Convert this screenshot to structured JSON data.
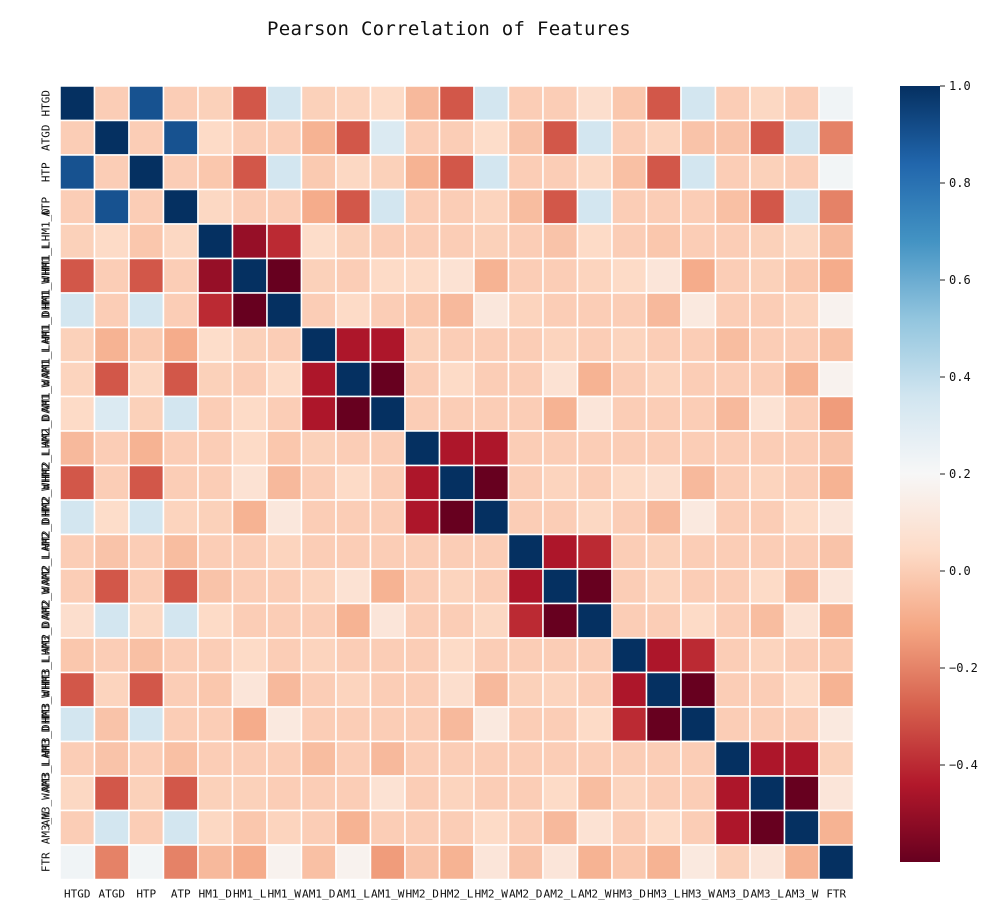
{
  "chart_data": {
    "type": "heatmap",
    "title": "Pearson Correlation of Features",
    "labels": [
      "HTGD",
      "ATGD",
      "HTP",
      "ATP",
      "HM1_D",
      "HM1_L",
      "HM1_W",
      "AM1_D",
      "AM1_L",
      "AM1_W",
      "HM2_D",
      "HM2_L",
      "HM2_W",
      "AM2_D",
      "AM2_L",
      "AM2_W",
      "HM3_D",
      "HM3_L",
      "HM3_W",
      "AM3_D",
      "AM3_L",
      "AM3_W",
      "FTR"
    ],
    "row_tick_labels": [
      "HTGD",
      "ATGD",
      "HTP",
      "ATP",
      "HM1_LHM1_D",
      "HM1_WHM1_L",
      "HM1_DHM1_W",
      "AM1_LAM1_D",
      "AM1_WAM1_L",
      "AM1_DAM1_W",
      "HM2_LHM2_D",
      "HM2_WHM2_L",
      "HM2_DHM2_W",
      "AM2_LAM2_D",
      "AM2_WAM2_L",
      "AM2_DAM2_W",
      "HM3_LHM3_D",
      "HM3_WHM3_L",
      "HM3_DHM3_W",
      "AM3_LAM3_D",
      "AM3_WAM3_L",
      "AM3_W",
      "FTR"
    ],
    "col_tick_labels": [
      "HTGD",
      "ATGD",
      "HTP",
      "ATP",
      "HM1_D",
      "HM1_L",
      "HM1_W",
      "AM1_D",
      "AM1_L",
      "AM1_W",
      "HM2_D",
      "HM2_L",
      "HM2_W",
      "AM2_D",
      "AM2_L",
      "AM2_W",
      "HM3_D",
      "HM3_L",
      "HM3_W",
      "AM3_D",
      "AM3_L",
      "AM3_W",
      "FTR"
    ],
    "values": [
      [
        1.0,
        0.0,
        0.9,
        0.0,
        0.01,
        -0.3,
        0.35,
        0.01,
        0.02,
        0.04,
        -0.06,
        -0.3,
        0.35,
        0.0,
        0.0,
        0.06,
        -0.02,
        -0.3,
        0.35,
        0.0,
        0.03,
        0.0,
        0.23
      ],
      [
        0.0,
        1.0,
        0.0,
        0.9,
        0.04,
        0.0,
        0.0,
        -0.08,
        -0.3,
        0.32,
        0.0,
        0.0,
        0.05,
        -0.03,
        -0.3,
        0.35,
        0.0,
        0.02,
        -0.03,
        -0.03,
        -0.3,
        0.35,
        -0.2
      ],
      [
        0.9,
        0.0,
        1.0,
        0.0,
        -0.02,
        -0.3,
        0.35,
        -0.01,
        0.03,
        0.01,
        -0.08,
        -0.3,
        0.35,
        0.0,
        0.0,
        0.03,
        -0.04,
        -0.3,
        0.35,
        0.0,
        0.01,
        0.0,
        0.22
      ],
      [
        0.0,
        0.9,
        0.0,
        1.0,
        0.03,
        0.0,
        0.0,
        -0.1,
        -0.3,
        0.35,
        0.0,
        0.0,
        0.02,
        -0.05,
        -0.3,
        0.35,
        0.0,
        0.0,
        0.0,
        -0.04,
        -0.3,
        0.35,
        -0.2
      ],
      [
        0.01,
        0.04,
        -0.02,
        0.03,
        1.0,
        -0.5,
        -0.4,
        0.05,
        0.01,
        0.0,
        0.0,
        0.0,
        0.01,
        0.0,
        -0.03,
        0.04,
        0.0,
        -0.02,
        0.0,
        0.0,
        0.01,
        0.03,
        -0.06
      ],
      [
        -0.3,
        0.0,
        -0.3,
        0.0,
        -0.5,
        1.0,
        -0.6,
        0.01,
        0.0,
        0.04,
        0.04,
        0.08,
        -0.08,
        0.0,
        0.0,
        0.02,
        0.04,
        0.1,
        -0.1,
        0.0,
        0.01,
        -0.02,
        -0.1
      ],
      [
        0.35,
        0.0,
        0.35,
        0.0,
        -0.4,
        -0.6,
        1.0,
        0.0,
        0.04,
        0.0,
        -0.02,
        -0.06,
        0.11,
        0.02,
        0.0,
        0.0,
        0.0,
        -0.06,
        0.12,
        0.0,
        0.0,
        0.02,
        0.17
      ],
      [
        0.01,
        -0.08,
        -0.01,
        -0.1,
        0.05,
        0.01,
        0.0,
        1.0,
        -0.45,
        -0.45,
        0.01,
        0.0,
        0.0,
        0.0,
        0.02,
        0.0,
        0.02,
        0.0,
        0.0,
        -0.05,
        0.0,
        0.0,
        -0.04
      ],
      [
        0.02,
        -0.3,
        0.03,
        -0.3,
        0.01,
        0.0,
        0.04,
        -0.45,
        1.0,
        -0.6,
        0.0,
        0.04,
        0.0,
        0.0,
        0.08,
        -0.08,
        0.0,
        0.02,
        0.0,
        0.0,
        0.0,
        -0.08,
        0.17
      ],
      [
        0.04,
        0.32,
        0.01,
        0.35,
        0.0,
        0.04,
        0.0,
        -0.45,
        -0.6,
        1.0,
        0.0,
        0.0,
        0.0,
        0.0,
        -0.08,
        0.1,
        0.0,
        0.0,
        0.0,
        -0.06,
        0.08,
        0.0,
        -0.14
      ],
      [
        -0.06,
        0.0,
        -0.08,
        0.0,
        0.0,
        0.04,
        -0.02,
        0.01,
        0.0,
        0.0,
        1.0,
        -0.45,
        -0.45,
        0.0,
        0.0,
        0.0,
        0.0,
        0.0,
        0.0,
        0.0,
        0.0,
        0.0,
        -0.03
      ],
      [
        -0.3,
        0.0,
        -0.3,
        0.0,
        0.0,
        0.08,
        -0.06,
        0.0,
        0.04,
        0.0,
        -0.45,
        1.0,
        -0.6,
        0.0,
        0.02,
        0.0,
        0.04,
        0.06,
        -0.06,
        0.0,
        0.02,
        0.0,
        -0.08
      ],
      [
        0.35,
        0.05,
        0.35,
        0.02,
        0.01,
        -0.08,
        0.11,
        0.0,
        0.0,
        0.0,
        -0.45,
        -0.6,
        1.0,
        0.0,
        0.0,
        0.03,
        0.0,
        -0.06,
        0.12,
        0.0,
        0.0,
        0.04,
        0.1
      ],
      [
        0.0,
        -0.03,
        0.0,
        -0.05,
        0.0,
        0.0,
        0.02,
        0.0,
        0.0,
        0.0,
        0.0,
        0.0,
        0.0,
        1.0,
        -0.45,
        -0.4,
        0.0,
        0.01,
        0.0,
        0.0,
        0.0,
        0.0,
        -0.03
      ],
      [
        0.0,
        -0.3,
        0.0,
        -0.3,
        -0.03,
        0.0,
        0.0,
        0.02,
        0.08,
        -0.08,
        0.0,
        0.02,
        0.0,
        -0.45,
        1.0,
        -0.6,
        0.0,
        0.02,
        0.0,
        0.0,
        0.04,
        -0.06,
        0.1
      ],
      [
        0.06,
        0.35,
        0.03,
        0.35,
        0.04,
        0.0,
        0.0,
        0.0,
        -0.08,
        0.1,
        0.0,
        0.0,
        0.03,
        -0.4,
        -0.6,
        1.0,
        0.0,
        0.0,
        0.04,
        0.0,
        -0.05,
        0.08,
        -0.08
      ],
      [
        -0.02,
        0.0,
        -0.04,
        0.0,
        0.0,
        0.04,
        0.0,
        0.02,
        0.0,
        0.0,
        0.0,
        0.04,
        0.0,
        0.0,
        0.0,
        0.0,
        1.0,
        -0.45,
        -0.4,
        0.0,
        0.02,
        0.0,
        -0.02
      ],
      [
        -0.3,
        0.02,
        -0.3,
        0.0,
        -0.02,
        0.1,
        -0.06,
        0.0,
        0.02,
        0.0,
        0.0,
        0.06,
        -0.06,
        0.01,
        0.02,
        0.0,
        -0.45,
        1.0,
        -0.6,
        0.0,
        0.0,
        0.04,
        -0.08
      ],
      [
        0.35,
        -0.03,
        0.35,
        0.0,
        0.0,
        -0.1,
        0.12,
        0.0,
        0.0,
        0.0,
        0.0,
        -0.06,
        0.12,
        0.0,
        0.0,
        0.04,
        -0.4,
        -0.6,
        1.0,
        0.0,
        0.0,
        0.0,
        0.12
      ],
      [
        0.0,
        -0.03,
        0.0,
        -0.04,
        0.0,
        0.0,
        0.0,
        -0.05,
        0.0,
        -0.06,
        0.0,
        0.0,
        0.0,
        0.0,
        0.0,
        0.0,
        0.0,
        0.0,
        0.0,
        1.0,
        -0.45,
        -0.45,
        0.01
      ],
      [
        0.03,
        -0.3,
        0.01,
        -0.3,
        0.01,
        0.01,
        0.0,
        0.0,
        0.0,
        0.08,
        0.0,
        0.02,
        0.0,
        0.0,
        0.04,
        -0.05,
        0.02,
        0.0,
        0.0,
        -0.45,
        1.0,
        -0.6,
        0.1
      ],
      [
        0.0,
        0.35,
        0.0,
        0.35,
        0.03,
        -0.02,
        0.02,
        0.0,
        -0.08,
        0.0,
        0.0,
        0.0,
        0.04,
        0.0,
        -0.06,
        0.08,
        0.0,
        0.04,
        0.0,
        -0.45,
        -0.6,
        1.0,
        -0.08
      ],
      [
        0.23,
        -0.2,
        0.22,
        -0.2,
        -0.06,
        -0.1,
        0.17,
        -0.04,
        0.17,
        -0.14,
        -0.03,
        -0.08,
        0.1,
        -0.03,
        0.1,
        -0.08,
        -0.02,
        -0.08,
        0.12,
        0.01,
        0.1,
        -0.08,
        1.0
      ]
    ],
    "color_range": [
      -0.6,
      1.0
    ],
    "colormap": "RdBu",
    "colorbar_ticks": [
      1.0,
      0.8,
      0.6,
      0.4,
      0.2,
      0.0,
      -0.2,
      -0.4
    ],
    "colorbar_tick_labels": [
      "1.0",
      "0.8",
      "0.6",
      "0.4",
      "0.2",
      "0.0",
      "−0.2",
      "−0.4"
    ],
    "gridline_color": "#ffffff",
    "legend": "colorbar right"
  }
}
